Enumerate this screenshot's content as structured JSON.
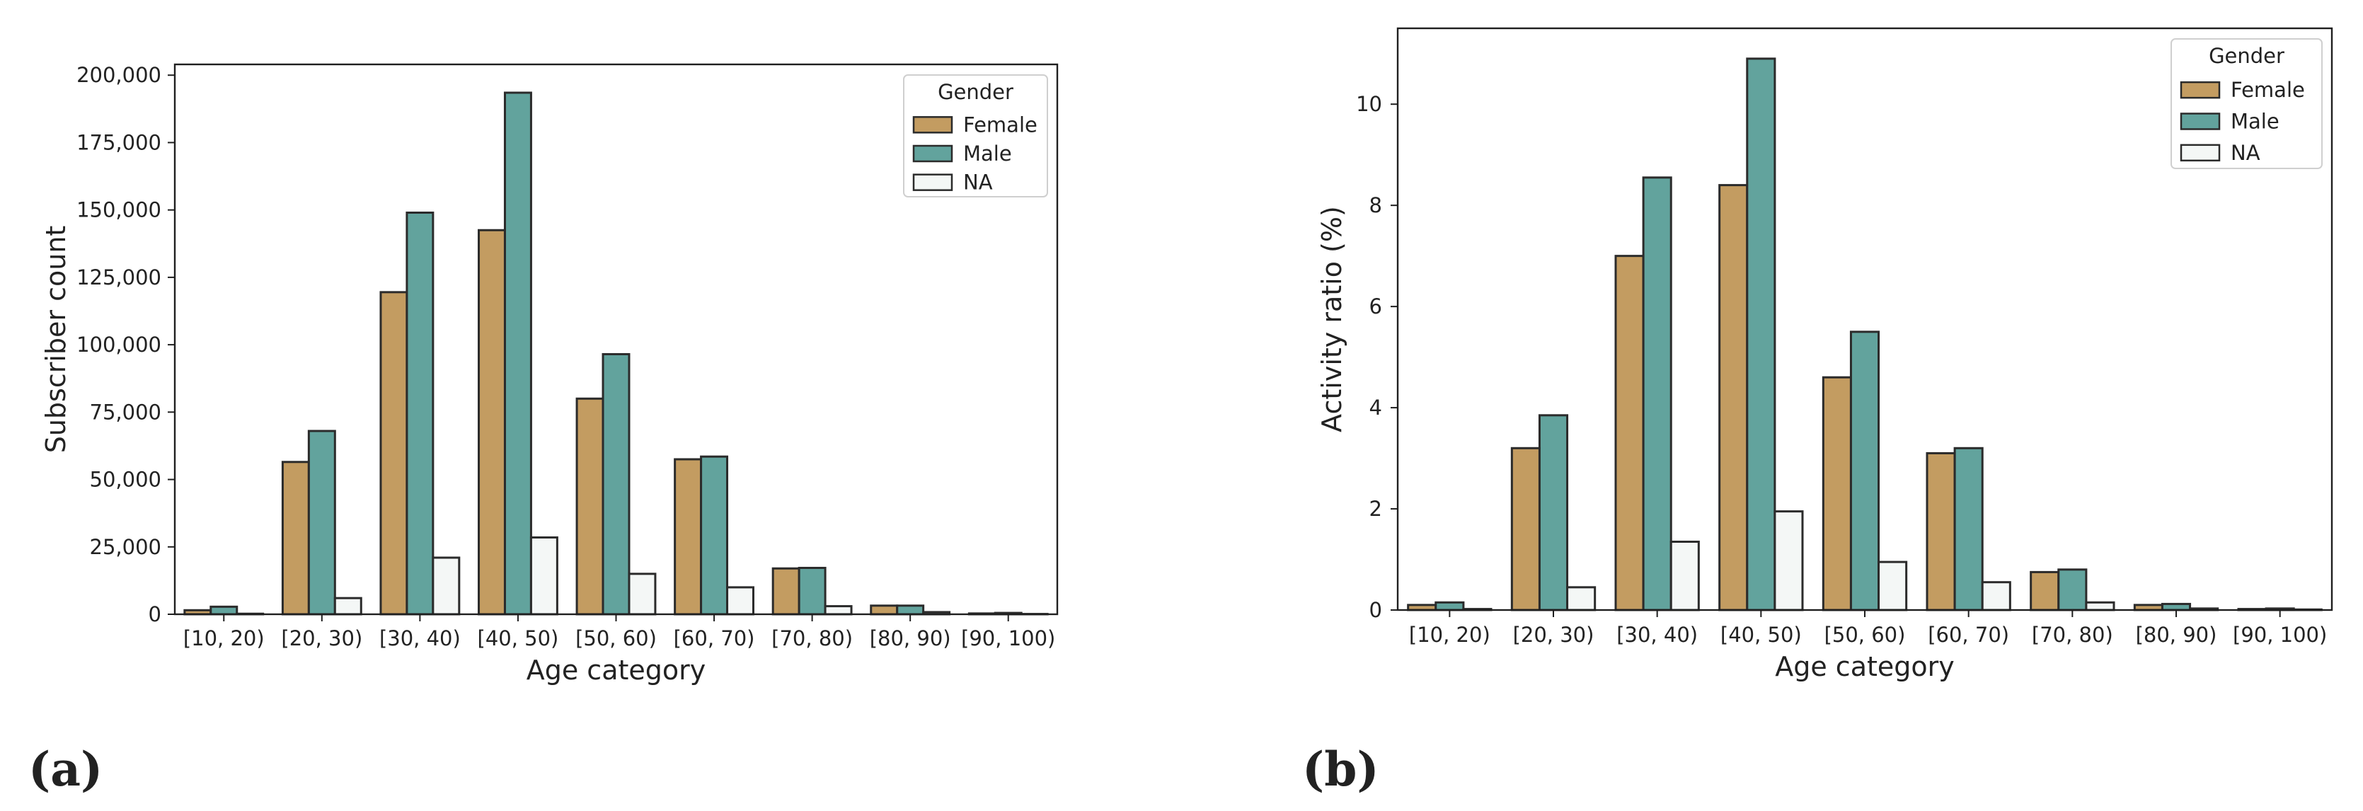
{
  "colors": {
    "female": "#C39C61",
    "male": "#62A39D",
    "na": "#F4F7F6",
    "edge": "#2b2b2b",
    "axis": "#1f1f1f"
  },
  "chart_data": [
    {
      "type": "bar",
      "panel_label": "(a)",
      "title": "",
      "xlabel": "Age category",
      "ylabel": "Subscriber count",
      "ylim": [
        0,
        204000
      ],
      "yticks": [
        0,
        25000,
        50000,
        75000,
        100000,
        125000,
        150000,
        175000,
        200000
      ],
      "ytick_labels": [
        "0",
        "25,000",
        "50,000",
        "75,000",
        "100,000",
        "125,000",
        "150,000",
        "175,000",
        "200,000"
      ],
      "categories": [
        "[10, 20)",
        "[20, 30)",
        "[30, 40)",
        "[40, 50)",
        "[50, 60)",
        "[60, 70)",
        "[70, 80)",
        "[80, 90)",
        "[90, 100)"
      ],
      "legend": {
        "title": "Gender",
        "position": "top-right"
      },
      "series": [
        {
          "name": "Female",
          "key": "female",
          "values": [
            1500,
            56500,
            119500,
            142500,
            80000,
            57500,
            17000,
            3200,
            300
          ]
        },
        {
          "name": "Male",
          "key": "male",
          "values": [
            2800,
            68000,
            149000,
            193500,
            96500,
            58500,
            17200,
            3200,
            500
          ]
        },
        {
          "name": "NA",
          "key": "na",
          "values": [
            200,
            6000,
            21000,
            28500,
            15000,
            10000,
            3000,
            800,
            100
          ]
        }
      ]
    },
    {
      "type": "bar",
      "panel_label": "(b)",
      "title": "",
      "xlabel": "Age category",
      "ylabel": "Activity ratio (%)",
      "ylim": [
        0,
        11.5
      ],
      "yticks": [
        0,
        2,
        4,
        6,
        8,
        10
      ],
      "ytick_labels": [
        "0",
        "2",
        "4",
        "6",
        "8",
        "10"
      ],
      "categories": [
        "[10, 20)",
        "[20, 30)",
        "[30, 40)",
        "[40, 50)",
        "[50, 60)",
        "[60, 70)",
        "[70, 80)",
        "[80, 90)",
        "[90, 100)"
      ],
      "legend": {
        "title": "Gender",
        "position": "top-right"
      },
      "series": [
        {
          "name": "Female",
          "key": "female",
          "values": [
            0.1,
            3.2,
            7.0,
            8.4,
            4.6,
            3.1,
            0.75,
            0.1,
            0.02
          ]
        },
        {
          "name": "Male",
          "key": "male",
          "values": [
            0.15,
            3.85,
            8.55,
            10.9,
            5.5,
            3.2,
            0.8,
            0.12,
            0.03
          ]
        },
        {
          "name": "NA",
          "key": "na",
          "values": [
            0.02,
            0.45,
            1.35,
            1.95,
            0.95,
            0.55,
            0.15,
            0.03,
            0.01
          ]
        }
      ]
    }
  ]
}
